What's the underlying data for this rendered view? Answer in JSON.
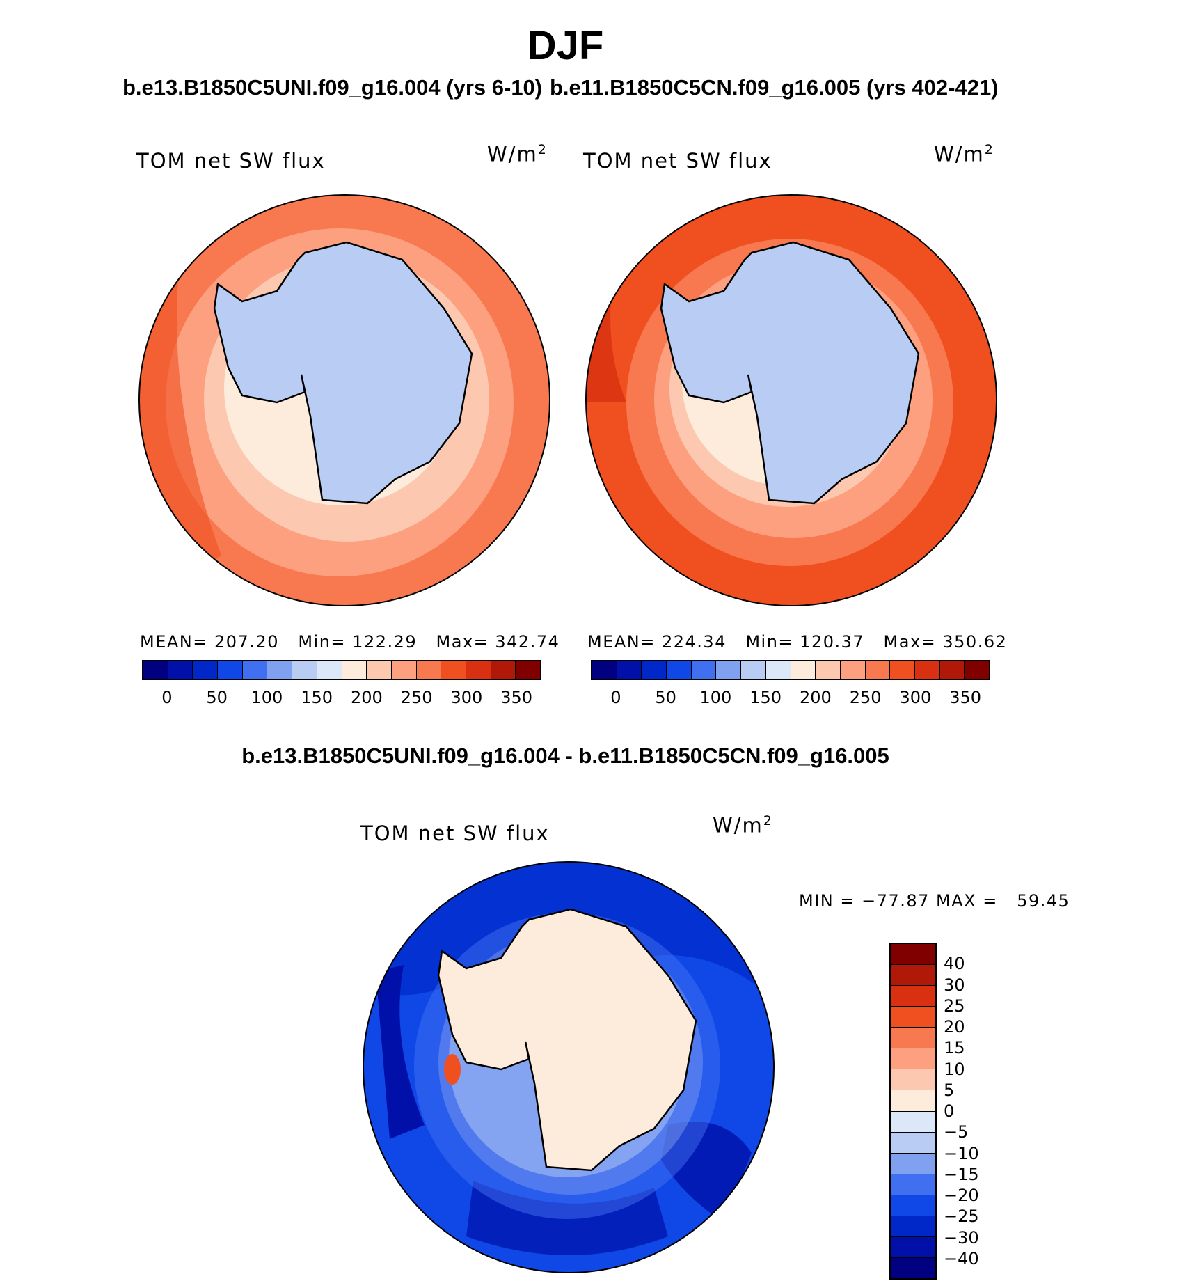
{
  "title": "DJF",
  "panels": {
    "left": {
      "case_title": "b.e13.B1850C5UNI.f09_g16.004 (yrs 6-10)",
      "variable": "TOM net SW flux",
      "units_base": "W/m",
      "units_exp": "2",
      "stats": "MEAN= 207.20   Min= 122.29   Max= 342.74"
    },
    "right": {
      "case_title": "b.e11.B1850C5CN.f09_g16.005 (yrs 402-421)",
      "variable": "TOM net SW flux",
      "units_base": "W/m",
      "units_exp": "2",
      "stats": "MEAN= 224.34   Min= 120.37   Max= 350.62"
    },
    "diff": {
      "title": "b.e13.B1850C5UNI.f09_g16.004 - b.e11.B1850C5CN.f09_g16.005",
      "variable": "TOM net SW flux",
      "units_base": "W/m",
      "units_exp": "2",
      "stats": "MIN = −77.87 MAX =   59.45"
    }
  },
  "abs_colorbar": {
    "colors": [
      "#000080",
      "#0010a8",
      "#0028c8",
      "#1048e8",
      "#4070f0",
      "#80a0f0",
      "#b8ccf4",
      "#dce8f8",
      "#fdebdc",
      "#fdc8b0",
      "#fca080",
      "#f87850",
      "#f05020",
      "#d83010",
      "#b01808",
      "#800000"
    ],
    "tick_labels": [
      "0",
      "50",
      "100",
      "150",
      "200",
      "250",
      "300",
      "350"
    ]
  },
  "diff_colorbar": {
    "colors": [
      "#800000",
      "#b01808",
      "#d83010",
      "#f05020",
      "#f87850",
      "#fca080",
      "#fdc8b0",
      "#fdebdc",
      "#dce8f8",
      "#b8ccf4",
      "#80a0f0",
      "#4070f0",
      "#1048e8",
      "#0028c8",
      "#0010a8",
      "#000080"
    ],
    "tick_labels": [
      "40",
      "30",
      "25",
      "20",
      "15",
      "10",
      "5",
      "0",
      "−5",
      "−10",
      "−15",
      "−20",
      "−25",
      "−30",
      "−40"
    ]
  }
}
